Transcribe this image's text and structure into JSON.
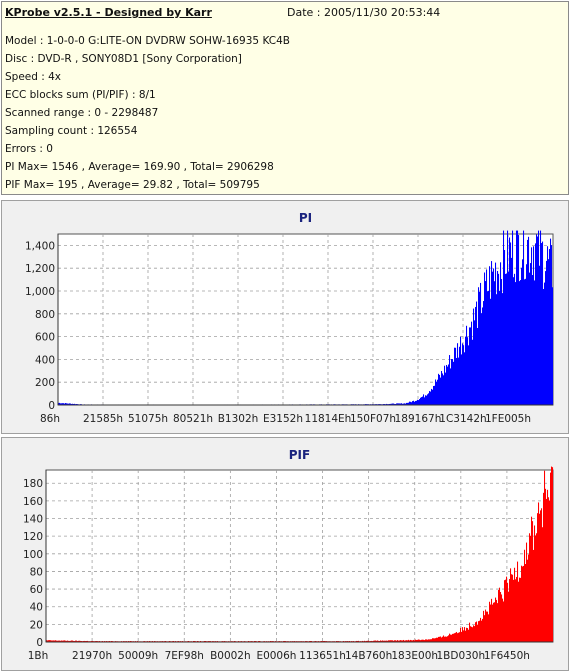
{
  "header": {
    "title": "KProbe v2.5.1 - Designed by Karr",
    "date": "Date : 2005/11/30 20:53:44",
    "lines": [
      "Model : 1-0-0-0 G:LITE-ON DVDRW SOHW-16935 KC4B",
      "Disc : DVD-R , SONY08D1 [Sony Corporation]",
      "Speed : 4x",
      "ECC blocks sum (PI/PIF) : 8/1",
      "Scanned range : 0 - 2298487",
      "Sampling count : 126554",
      "Errors : 0",
      "PI Max= 1546 , Average= 169.90 , Total= 2906298",
      "PIF Max= 195 , Average= 29.82 , Total= 509795"
    ]
  },
  "colors": {
    "pi": "#0000ff",
    "pif": "#ff0000",
    "grid": "#a0a0a0"
  },
  "chart_data": [
    {
      "type": "area",
      "title": "PI",
      "ylim": [
        0,
        1500
      ],
      "yticks": [
        "0",
        "200",
        "400",
        "600",
        "800",
        "1,000",
        "1,200",
        "1,400"
      ],
      "ytick_values": [
        0,
        200,
        400,
        600,
        800,
        1000,
        1200,
        1400
      ],
      "xticks": [
        "86h",
        "21585h",
        "51075h",
        "80521h",
        "B1302h",
        "E3152h",
        "11814Eh",
        "150F07h",
        "189167h",
        "1C3142h",
        "1FE005h"
      ],
      "grid": true,
      "series": [
        {
          "color": "#0000ff",
          "x": [
            0,
            0.05,
            0.1,
            0.2,
            0.3,
            0.4,
            0.5,
            0.6,
            0.65,
            0.7,
            0.72,
            0.74,
            0.76,
            0.78,
            0.8,
            0.82,
            0.84,
            0.86,
            0.88,
            0.9,
            0.92,
            0.94,
            0.96,
            0.98,
            1.0
          ],
          "values": [
            20,
            5,
            4,
            4,
            4,
            4,
            5,
            6,
            8,
            15,
            40,
            90,
            200,
            330,
            480,
            640,
            820,
            1050,
            1250,
            1380,
            1480,
            1520,
            1500,
            1400,
            1250
          ]
        }
      ]
    },
    {
      "type": "area",
      "title": "PIF",
      "ylim": [
        0,
        195
      ],
      "yticks": [
        "0",
        "20",
        "40",
        "60",
        "80",
        "100",
        "120",
        "140",
        "160",
        "180"
      ],
      "ytick_values": [
        0,
        20,
        40,
        60,
        80,
        100,
        120,
        140,
        160,
        180
      ],
      "xticks": [
        "1Bh",
        "21970h",
        "50009h",
        "7EF98h",
        "B0002h",
        "E0006h",
        "113651h",
        "14B760h",
        "183E00h",
        "1BD030h",
        "1F6450h"
      ],
      "grid": true,
      "series": [
        {
          "color": "#ff0000",
          "x": [
            0,
            0.1,
            0.2,
            0.3,
            0.4,
            0.5,
            0.6,
            0.7,
            0.75,
            0.78,
            0.8,
            0.82,
            0.84,
            0.86,
            0.88,
            0.9,
            0.92,
            0.94,
            0.96,
            0.98,
            1.0
          ],
          "values": [
            2,
            1,
            1,
            1,
            1,
            1,
            1,
            2,
            3,
            6,
            10,
            15,
            22,
            32,
            45,
            60,
            80,
            105,
            135,
            170,
            195
          ]
        }
      ]
    }
  ]
}
